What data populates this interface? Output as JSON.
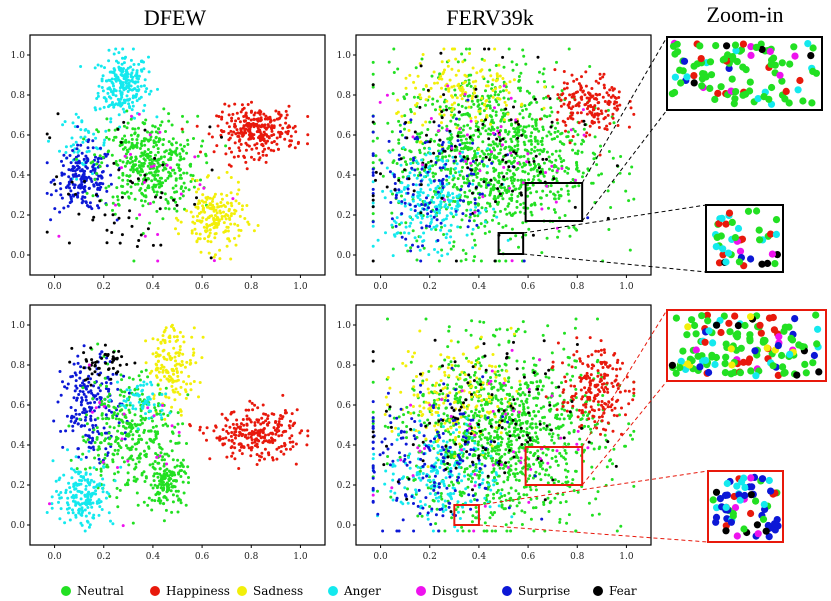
{
  "column_titles": [
    "DFEW",
    "FERV39k",
    "Zoom-in"
  ],
  "colors": {
    "Neutral": "#22e022",
    "Happiness": "#e8190c",
    "Sadness": "#f2ef0a",
    "Anger": "#14e9ee",
    "Disgust": "#ee12ee",
    "Surprise": "#0c18d6",
    "Fear": "#000000"
  },
  "legend": [
    "Neutral",
    "Happiness",
    "Sadness",
    "Anger",
    "Disgust",
    "Surprise",
    "Fear"
  ],
  "chart_data": [
    {
      "type": "scatter",
      "panel": "top-left",
      "title": "DFEW",
      "xlim": [
        0.0,
        1.0
      ],
      "ylim": [
        0.0,
        1.0
      ],
      "xticks": [
        "0.0",
        "0.2",
        "0.4",
        "0.6",
        "0.8",
        "1.0"
      ],
      "yticks": [
        "0.0",
        "0.2",
        "0.4",
        "0.6",
        "0.8",
        "1.0"
      ],
      "clusters": [
        {
          "label": "Anger",
          "cx": 0.28,
          "cy": 0.85,
          "sx": 0.05,
          "sy": 0.08,
          "n": 240
        },
        {
          "label": "Anger",
          "cx": 0.12,
          "cy": 0.55,
          "sx": 0.05,
          "sy": 0.08,
          "n": 60
        },
        {
          "label": "Surprise",
          "cx": 0.12,
          "cy": 0.38,
          "sx": 0.06,
          "sy": 0.08,
          "n": 200
        },
        {
          "label": "Neutral",
          "cx": 0.38,
          "cy": 0.45,
          "sx": 0.1,
          "sy": 0.12,
          "n": 420
        },
        {
          "label": "Happiness",
          "cx": 0.82,
          "cy": 0.62,
          "sx": 0.08,
          "sy": 0.06,
          "n": 280
        },
        {
          "label": "Sadness",
          "cx": 0.65,
          "cy": 0.18,
          "sx": 0.06,
          "sy": 0.08,
          "n": 200
        },
        {
          "label": "Fear",
          "cx": 0.3,
          "cy": 0.35,
          "sx": 0.18,
          "sy": 0.2,
          "n": 60
        },
        {
          "label": "Disgust",
          "cx": 0.4,
          "cy": 0.4,
          "sx": 0.15,
          "sy": 0.2,
          "n": 25
        }
      ]
    },
    {
      "type": "scatter",
      "panel": "top-middle",
      "title": "FERV39k",
      "xlim": [
        0.0,
        1.0
      ],
      "ylim": [
        0.0,
        1.0
      ],
      "xticks": [
        "0.0",
        "0.2",
        "0.4",
        "0.6",
        "0.8",
        "1.0"
      ],
      "yticks": [
        "0.0",
        "0.2",
        "0.4",
        "0.6",
        "0.8",
        "1.0"
      ],
      "zoom_boxes": [
        {
          "x0": 0.59,
          "y0": 0.17,
          "x1": 0.82,
          "y1": 0.36
        },
        {
          "x0": 0.48,
          "y0": 0.005,
          "x1": 0.58,
          "y1": 0.11
        }
      ],
      "clusters": [
        {
          "label": "Neutral",
          "cx": 0.45,
          "cy": 0.5,
          "sx": 0.2,
          "sy": 0.22,
          "n": 1100
        },
        {
          "label": "Happiness",
          "cx": 0.85,
          "cy": 0.75,
          "sx": 0.07,
          "sy": 0.08,
          "n": 180
        },
        {
          "label": "Sadness",
          "cx": 0.35,
          "cy": 0.8,
          "sx": 0.14,
          "sy": 0.1,
          "n": 160
        },
        {
          "label": "Anger",
          "cx": 0.2,
          "cy": 0.28,
          "sx": 0.1,
          "sy": 0.12,
          "n": 240
        },
        {
          "label": "Surprise",
          "cx": 0.2,
          "cy": 0.35,
          "sx": 0.15,
          "sy": 0.18,
          "n": 140
        },
        {
          "label": "Fear",
          "cx": 0.4,
          "cy": 0.5,
          "sx": 0.22,
          "sy": 0.22,
          "n": 120
        },
        {
          "label": "Disgust",
          "cx": 0.45,
          "cy": 0.5,
          "sx": 0.2,
          "sy": 0.22,
          "n": 50
        }
      ]
    },
    {
      "type": "scatter",
      "panel": "bottom-left",
      "title": "",
      "xlim": [
        0.0,
        1.0
      ],
      "ylim": [
        0.0,
        1.0
      ],
      "xticks": [
        "0.0",
        "0.2",
        "0.4",
        "0.6",
        "0.8",
        "1.0"
      ],
      "yticks": [
        "0.0",
        "0.2",
        "0.4",
        "0.6",
        "0.8",
        "1.0"
      ],
      "clusters": [
        {
          "label": "Surprise",
          "cx": 0.15,
          "cy": 0.6,
          "sx": 0.06,
          "sy": 0.12,
          "n": 200
        },
        {
          "label": "Sadness",
          "cx": 0.48,
          "cy": 0.8,
          "sx": 0.05,
          "sy": 0.1,
          "n": 160
        },
        {
          "label": "Neutral",
          "cx": 0.3,
          "cy": 0.45,
          "sx": 0.1,
          "sy": 0.15,
          "n": 340
        },
        {
          "label": "Neutral",
          "cx": 0.46,
          "cy": 0.22,
          "sx": 0.04,
          "sy": 0.06,
          "n": 140
        },
        {
          "label": "Anger",
          "cx": 0.12,
          "cy": 0.15,
          "sx": 0.06,
          "sy": 0.08,
          "n": 180
        },
        {
          "label": "Anger",
          "cx": 0.36,
          "cy": 0.62,
          "sx": 0.05,
          "sy": 0.06,
          "n": 60
        },
        {
          "label": "Happiness",
          "cx": 0.82,
          "cy": 0.45,
          "sx": 0.09,
          "sy": 0.06,
          "n": 260
        },
        {
          "label": "Fear",
          "cx": 0.2,
          "cy": 0.8,
          "sx": 0.06,
          "sy": 0.05,
          "n": 50
        },
        {
          "label": "Disgust",
          "cx": 0.3,
          "cy": 0.45,
          "sx": 0.15,
          "sy": 0.2,
          "n": 20
        }
      ]
    },
    {
      "type": "scatter",
      "panel": "bottom-middle",
      "title": "",
      "xlim": [
        0.0,
        1.0
      ],
      "ylim": [
        0.0,
        1.0
      ],
      "xticks": [
        "0.0",
        "0.2",
        "0.4",
        "0.6",
        "0.8",
        "1.0"
      ],
      "yticks": [
        "0.0",
        "0.2",
        "0.4",
        "0.6",
        "0.8",
        "1.0"
      ],
      "zoom_boxes": [
        {
          "x0": 0.59,
          "y0": 0.2,
          "x1": 0.82,
          "y1": 0.39
        },
        {
          "x0": 0.3,
          "y0": 0.0,
          "x1": 0.4,
          "y1": 0.1
        }
      ],
      "clusters": [
        {
          "label": "Neutral",
          "cx": 0.5,
          "cy": 0.45,
          "sx": 0.2,
          "sy": 0.22,
          "n": 1100
        },
        {
          "label": "Happiness",
          "cx": 0.87,
          "cy": 0.68,
          "sx": 0.07,
          "sy": 0.1,
          "n": 200
        },
        {
          "label": "Sadness",
          "cx": 0.3,
          "cy": 0.65,
          "sx": 0.12,
          "sy": 0.14,
          "n": 180
        },
        {
          "label": "Anger",
          "cx": 0.25,
          "cy": 0.25,
          "sx": 0.12,
          "sy": 0.12,
          "n": 200
        },
        {
          "label": "Surprise",
          "cx": 0.2,
          "cy": 0.3,
          "sx": 0.15,
          "sy": 0.2,
          "n": 180
        },
        {
          "label": "Fear",
          "cx": 0.4,
          "cy": 0.5,
          "sx": 0.2,
          "sy": 0.2,
          "n": 120
        },
        {
          "label": "Disgust",
          "cx": 0.45,
          "cy": 0.45,
          "sx": 0.2,
          "sy": 0.2,
          "n": 50
        }
      ]
    }
  ],
  "zoom_panels": [
    {
      "row": "top",
      "index": 0,
      "border": "#000000",
      "mix": {
        "Neutral": 0.62,
        "Happiness": 0.12,
        "Anger": 0.1,
        "Disgust": 0.06,
        "Surprise": 0.05,
        "Fear": 0.05
      },
      "n": 110
    },
    {
      "row": "top",
      "index": 1,
      "border": "#000000",
      "mix": {
        "Neutral": 0.3,
        "Happiness": 0.15,
        "Anger": 0.25,
        "Surprise": 0.12,
        "Fear": 0.1,
        "Disgust": 0.08
      },
      "n": 45
    },
    {
      "row": "bottom",
      "index": 0,
      "border": "#e8190c",
      "mix": {
        "Neutral": 0.6,
        "Happiness": 0.12,
        "Sadness": 0.05,
        "Anger": 0.08,
        "Disgust": 0.05,
        "Surprise": 0.06,
        "Fear": 0.04
      },
      "n": 150
    },
    {
      "row": "bottom",
      "index": 1,
      "border": "#e8190c",
      "mix": {
        "Surprise": 0.45,
        "Anger": 0.2,
        "Neutral": 0.12,
        "Happiness": 0.1,
        "Fear": 0.08,
        "Disgust": 0.05
      },
      "n": 70
    }
  ]
}
